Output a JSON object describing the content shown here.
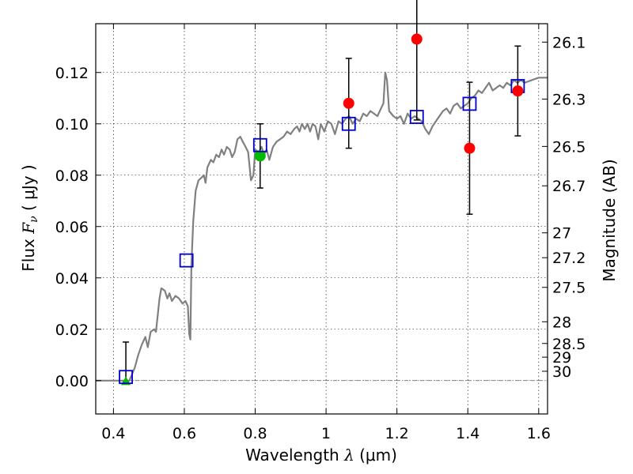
{
  "chart_data": {
    "type": "scatter",
    "xlabel": {
      "prefix": "Wavelength  ",
      "lambda": "λ",
      "unit": " (μm)"
    },
    "ylabel": {
      "prefix": "Flux  ",
      "F": "F",
      "nu": "ν",
      "unit": "  ( μJy )"
    },
    "y2label": "Magnitude (AB)",
    "xlim": [
      0.35,
      1.625
    ],
    "ylim": [
      -0.013,
      0.139
    ],
    "grid": true,
    "x_ticks": [
      {
        "v": 0.4,
        "label": "0.4"
      },
      {
        "v": 0.6,
        "label": "0.6"
      },
      {
        "v": 0.8,
        "label": "0.8"
      },
      {
        "v": 1.0,
        "label": "1"
      },
      {
        "v": 1.2,
        "label": "1.2"
      },
      {
        "v": 1.4,
        "label": "1.4"
      },
      {
        "v": 1.6,
        "label": "1.6"
      }
    ],
    "y_ticks": [
      {
        "v": 0.0,
        "label": "0.00"
      },
      {
        "v": 0.02,
        "label": "0.02"
      },
      {
        "v": 0.04,
        "label": "0.04"
      },
      {
        "v": 0.06,
        "label": "0.06"
      },
      {
        "v": 0.08,
        "label": "0.08"
      },
      {
        "v": 0.1,
        "label": "0.10"
      },
      {
        "v": 0.12,
        "label": "0.12"
      }
    ],
    "mag_ticks": [
      {
        "mag": 26.1,
        "label": "26.1"
      },
      {
        "mag": 26.3,
        "label": "26.3"
      },
      {
        "mag": 26.5,
        "label": "26.5"
      },
      {
        "mag": 26.7,
        "label": "26.7"
      },
      {
        "mag": 27,
        "label": "27"
      },
      {
        "mag": 27.2,
        "label": "27.2"
      },
      {
        "mag": 27.5,
        "label": "27.5"
      },
      {
        "mag": 28,
        "label": "28"
      },
      {
        "mag": 28.5,
        "label": "28.5"
      },
      {
        "mag": 29,
        "label": "29"
      },
      {
        "mag": 30,
        "label": "30"
      }
    ],
    "model_sed": {
      "color": "#808080",
      "points": [
        [
          0.35,
          0.0
        ],
        [
          0.43,
          0.0
        ],
        [
          0.445,
          0.0
        ],
        [
          0.46,
          0.005
        ],
        [
          0.47,
          0.01
        ],
        [
          0.48,
          0.014
        ],
        [
          0.49,
          0.017
        ],
        [
          0.497,
          0.013
        ],
        [
          0.505,
          0.019
        ],
        [
          0.515,
          0.02
        ],
        [
          0.52,
          0.019
        ],
        [
          0.53,
          0.032
        ],
        [
          0.535,
          0.036
        ],
        [
          0.545,
          0.035
        ],
        [
          0.552,
          0.032
        ],
        [
          0.558,
          0.034
        ],
        [
          0.565,
          0.031
        ],
        [
          0.575,
          0.033
        ],
        [
          0.585,
          0.032
        ],
        [
          0.595,
          0.03
        ],
        [
          0.603,
          0.031
        ],
        [
          0.61,
          0.029
        ],
        [
          0.614,
          0.018
        ],
        [
          0.617,
          0.016
        ],
        [
          0.62,
          0.045
        ],
        [
          0.625,
          0.062
        ],
        [
          0.632,
          0.074
        ],
        [
          0.64,
          0.078
        ],
        [
          0.648,
          0.079
        ],
        [
          0.655,
          0.08
        ],
        [
          0.66,
          0.077
        ],
        [
          0.665,
          0.083
        ],
        [
          0.675,
          0.086
        ],
        [
          0.682,
          0.085
        ],
        [
          0.69,
          0.088
        ],
        [
          0.698,
          0.087
        ],
        [
          0.705,
          0.09
        ],
        [
          0.712,
          0.088
        ],
        [
          0.72,
          0.091
        ],
        [
          0.728,
          0.09
        ],
        [
          0.735,
          0.087
        ],
        [
          0.742,
          0.089
        ],
        [
          0.75,
          0.094
        ],
        [
          0.758,
          0.095
        ],
        [
          0.765,
          0.093
        ],
        [
          0.773,
          0.091
        ],
        [
          0.78,
          0.089
        ],
        [
          0.788,
          0.078
        ],
        [
          0.795,
          0.08
        ],
        [
          0.8,
          0.09
        ],
        [
          0.81,
          0.089
        ],
        [
          0.818,
          0.091
        ],
        [
          0.825,
          0.088
        ],
        [
          0.832,
          0.09
        ],
        [
          0.84,
          0.086
        ],
        [
          0.85,
          0.091
        ],
        [
          0.86,
          0.093
        ],
        [
          0.87,
          0.094
        ],
        [
          0.88,
          0.095
        ],
        [
          0.89,
          0.097
        ],
        [
          0.9,
          0.096
        ],
        [
          0.91,
          0.098
        ],
        [
          0.918,
          0.099
        ],
        [
          0.925,
          0.097
        ],
        [
          0.932,
          0.1
        ],
        [
          0.94,
          0.098
        ],
        [
          0.948,
          0.1
        ],
        [
          0.955,
          0.097
        ],
        [
          0.962,
          0.1
        ],
        [
          0.97,
          0.099
        ],
        [
          0.978,
          0.094
        ],
        [
          0.985,
          0.1
        ],
        [
          0.995,
          0.097
        ],
        [
          1.005,
          0.101
        ],
        [
          1.015,
          0.1
        ],
        [
          1.025,
          0.096
        ],
        [
          1.035,
          0.101
        ],
        [
          1.045,
          0.1
        ],
        [
          1.055,
          0.102
        ],
        [
          1.065,
          0.103
        ],
        [
          1.075,
          0.1
        ],
        [
          1.085,
          0.102
        ],
        [
          1.095,
          0.101
        ],
        [
          1.105,
          0.104
        ],
        [
          1.115,
          0.103
        ],
        [
          1.125,
          0.105
        ],
        [
          1.135,
          0.104
        ],
        [
          1.145,
          0.103
        ],
        [
          1.155,
          0.106
        ],
        [
          1.162,
          0.108
        ],
        [
          1.167,
          0.12
        ],
        [
          1.172,
          0.117
        ],
        [
          1.178,
          0.105
        ],
        [
          1.19,
          0.103
        ],
        [
          1.2,
          0.102
        ],
        [
          1.21,
          0.103
        ],
        [
          1.22,
          0.1
        ],
        [
          1.23,
          0.104
        ],
        [
          1.24,
          0.102
        ],
        [
          1.25,
          0.103
        ],
        [
          1.26,
          0.102
        ],
        [
          1.27,
          0.101
        ],
        [
          1.28,
          0.098
        ],
        [
          1.29,
          0.096
        ],
        [
          1.3,
          0.099
        ],
        [
          1.31,
          0.101
        ],
        [
          1.32,
          0.103
        ],
        [
          1.33,
          0.105
        ],
        [
          1.34,
          0.106
        ],
        [
          1.35,
          0.104
        ],
        [
          1.36,
          0.107
        ],
        [
          1.37,
          0.108
        ],
        [
          1.38,
          0.106
        ],
        [
          1.39,
          0.107
        ],
        [
          1.4,
          0.108
        ],
        [
          1.41,
          0.11
        ],
        [
          1.42,
          0.111
        ],
        [
          1.43,
          0.113
        ],
        [
          1.44,
          0.112
        ],
        [
          1.45,
          0.114
        ],
        [
          1.46,
          0.116
        ],
        [
          1.47,
          0.113
        ],
        [
          1.48,
          0.114
        ],
        [
          1.49,
          0.115
        ],
        [
          1.5,
          0.114
        ],
        [
          1.51,
          0.116
        ],
        [
          1.52,
          0.115
        ],
        [
          1.53,
          0.117
        ],
        [
          1.54,
          0.116
        ],
        [
          1.55,
          0.117
        ],
        [
          1.56,
          0.116
        ],
        [
          1.58,
          0.117
        ],
        [
          1.6,
          0.118
        ],
        [
          1.625,
          0.118
        ]
      ]
    },
    "model_bandpass": {
      "color": "#0000cc",
      "x": [
        0.435,
        0.606,
        0.814,
        1.064,
        1.256,
        1.405,
        1.541
      ],
      "y": [
        0.0014,
        0.0468,
        0.0917,
        0.1,
        0.1027,
        0.1078,
        0.1147
      ]
    },
    "detections": {
      "color": "#ff0000",
      "x": [
        1.064,
        1.256,
        1.405,
        1.541
      ],
      "y": [
        0.108,
        0.133,
        0.0905,
        0.1128
      ],
      "yerr": [
        0.0175,
        0.0315,
        0.0257,
        0.0175
      ]
    },
    "optical_detections": {
      "color": "#00bb00",
      "x": [
        0.814
      ],
      "y": [
        0.0875
      ],
      "yerr": [
        0.0125
      ]
    },
    "lower_limit": {
      "color": "#00bb00",
      "x": [
        0.435
      ],
      "y": [
        -0.0005
      ],
      "yerr_up": [
        0.0155
      ]
    }
  }
}
